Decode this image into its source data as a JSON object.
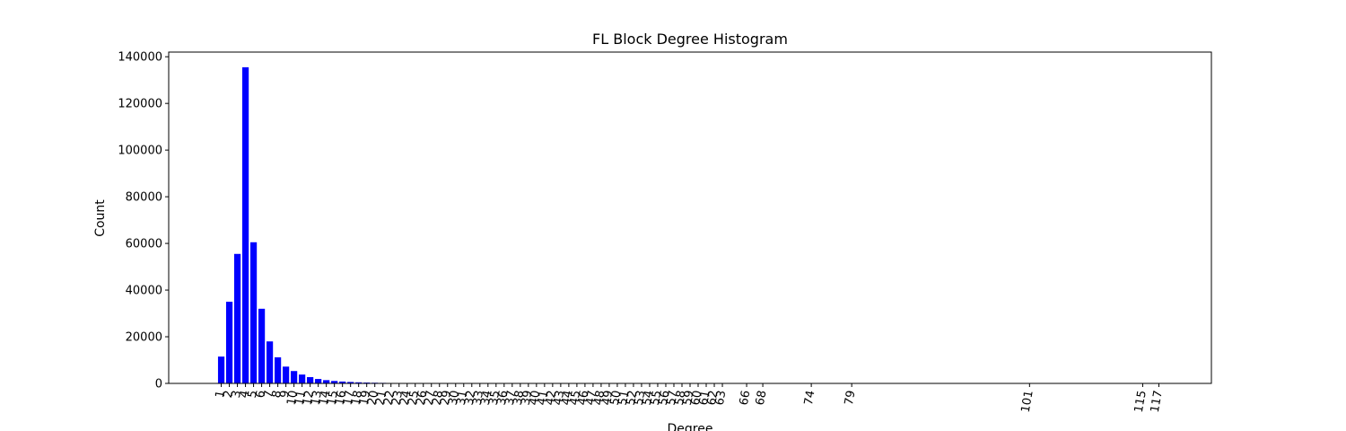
{
  "chart_data": {
    "type": "bar",
    "title": "FL Block Degree Histogram",
    "xlabel": "Degree",
    "ylabel": "Count",
    "xlim": [
      -5.5,
      123.5
    ],
    "ylim": [
      0,
      142000
    ],
    "y_ticks": [
      0,
      20000,
      40000,
      60000,
      80000,
      100000,
      120000,
      140000
    ],
    "grid": false,
    "bar_color": "#0000ff",
    "x_tick_rotation": -80,
    "x": [
      1,
      2,
      3,
      4,
      5,
      6,
      7,
      8,
      9,
      10,
      11,
      12,
      13,
      14,
      15,
      16,
      17,
      18,
      19,
      20,
      21,
      22,
      23,
      24,
      25,
      26,
      27,
      28,
      29,
      30,
      31,
      32,
      33,
      34,
      35,
      36,
      37,
      38,
      39,
      40,
      41,
      42,
      43,
      44,
      45,
      46,
      47,
      48,
      49,
      50,
      51,
      52,
      53,
      54,
      55,
      56,
      57,
      58,
      59,
      60,
      61,
      62,
      63,
      66,
      68,
      74,
      79,
      101,
      115,
      117
    ],
    "values": [
      11500,
      35000,
      55500,
      135500,
      60500,
      32000,
      18000,
      11200,
      7200,
      5300,
      3800,
      2700,
      1900,
      1400,
      1050,
      800,
      620,
      470,
      360,
      290,
      230,
      180,
      150,
      120,
      100,
      80,
      70,
      60,
      50,
      45,
      40,
      35,
      30,
      27,
      24,
      21,
      19,
      17,
      15,
      13,
      12,
      11,
      10,
      9,
      8,
      7,
      6,
      6,
      5,
      5,
      4,
      4,
      3,
      3,
      3,
      2,
      2,
      2,
      2,
      1,
      1,
      1,
      1,
      1,
      1,
      1,
      1,
      1,
      1,
      1
    ]
  }
}
